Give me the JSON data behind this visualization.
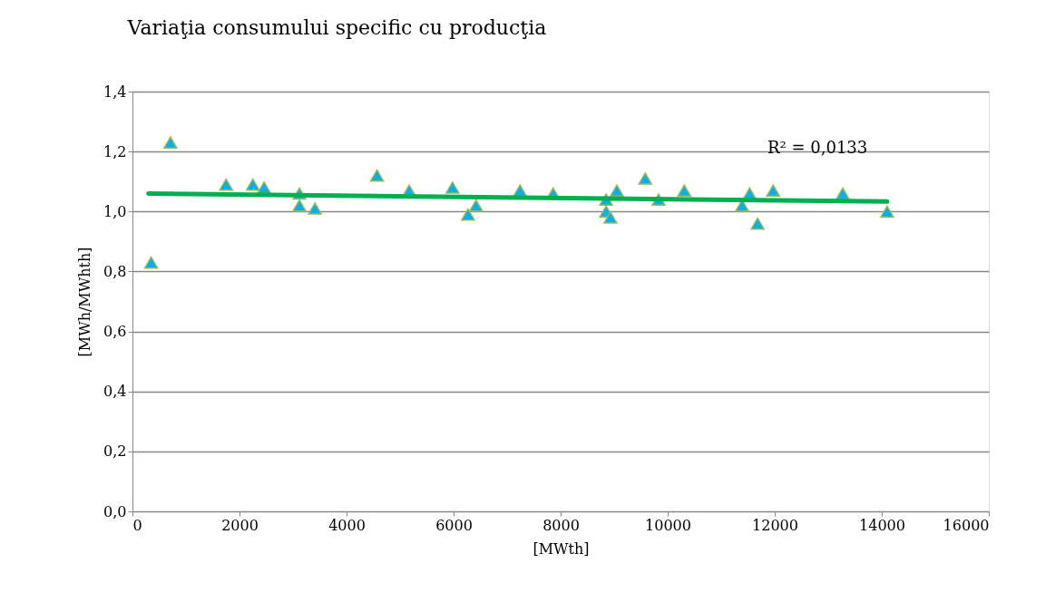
{
  "chart_data": {
    "type": "scatter",
    "title": "Variaţia consumului specific cu producţia",
    "xlabel": "[MWth]",
    "ylabel": "[MWh/MWhth]",
    "xlim": [
      0,
      16000
    ],
    "xticks": [
      0,
      2000,
      4000,
      6000,
      8000,
      10000,
      12000,
      14000,
      16000
    ],
    "ylim": [
      0,
      1.4
    ],
    "yticks": [
      {
        "value": 0,
        "label": "0,0"
      },
      {
        "value": 0.2,
        "label": "0,2"
      },
      {
        "value": 0.4,
        "label": "0,4"
      },
      {
        "value": 0.6,
        "label": "0,6"
      },
      {
        "value": 0.8,
        "label": "0,8"
      },
      {
        "value": 1.0,
        "label": "1,0"
      },
      {
        "value": 1.2,
        "label": "1,2"
      },
      {
        "value": 1.4,
        "label": "1,4"
      }
    ],
    "grid": "y",
    "series": [
      {
        "type": "scatter",
        "marker": "triangle",
        "color": "#00b0f0",
        "x": [
          350,
          710,
          1750,
          2250,
          2460,
          3120,
          3120,
          3410,
          4570,
          5170,
          5980,
          6270,
          6420,
          7240,
          7860,
          8850,
          8850,
          8930,
          9050,
          9580,
          9830,
          10310,
          11390,
          11530,
          11680,
          11970,
          13270,
          14100
        ],
        "values": [
          0.83,
          1.23,
          1.09,
          1.09,
          1.08,
          1.06,
          1.02,
          1.01,
          1.12,
          1.07,
          1.08,
          0.99,
          1.02,
          1.07,
          1.06,
          1.04,
          1.0,
          0.98,
          1.07,
          1.11,
          1.04,
          1.07,
          1.02,
          1.06,
          0.96,
          1.07,
          1.06,
          1.0
        ]
      },
      {
        "type": "line",
        "color": "#00b050",
        "x": [
          300,
          14100
        ],
        "values": [
          1.06,
          1.033
        ]
      }
    ],
    "annotations": [
      "R² = 0,0133"
    ]
  }
}
